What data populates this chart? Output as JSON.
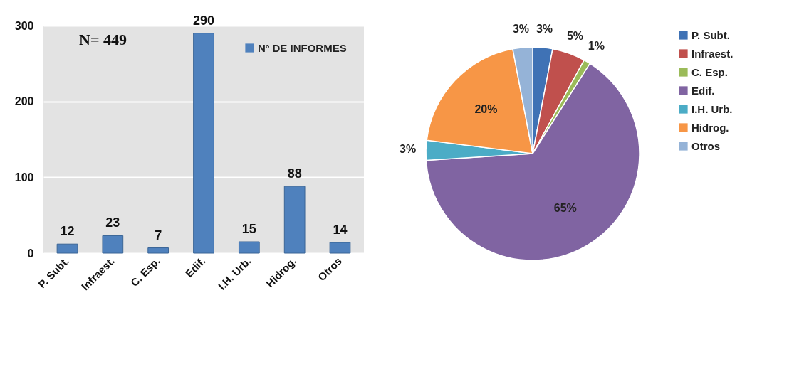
{
  "chart_data": [
    {
      "type": "bar",
      "categories": [
        "P. Subt.",
        "Infraest.",
        "C. Esp.",
        "Edif.",
        "I.H. Urb.",
        "Hidrog.",
        "Otros"
      ],
      "series": [
        {
          "name": "Nº DE INFORMES",
          "color": "#4f81bd",
          "values": [
            12,
            23,
            7,
            290,
            15,
            88,
            14
          ]
        }
      ],
      "ylim": [
        0,
        300
      ],
      "yticks": [
        0,
        100,
        200,
        300
      ],
      "grid": "y",
      "data_labels": true,
      "legend": "top right",
      "annotations": [
        "N= 449"
      ]
    },
    {
      "type": "pie",
      "categories": [
        "P. Subt.",
        "Infraest.",
        "C. Esp.",
        "Edif.",
        "I.H. Urb.",
        "Hidrog.",
        "Otros"
      ],
      "values": [
        3,
        5,
        1,
        65,
        3,
        20,
        3
      ],
      "colors": [
        "#3f72b5",
        "#c0504d",
        "#9bbb59",
        "#8064a2",
        "#4bacc6",
        "#f79646",
        "#95b3d7"
      ],
      "value_labels": [
        "3%",
        "5%",
        "1%",
        "65%",
        "3%",
        "20%",
        "3%"
      ],
      "legend": "right"
    }
  ]
}
